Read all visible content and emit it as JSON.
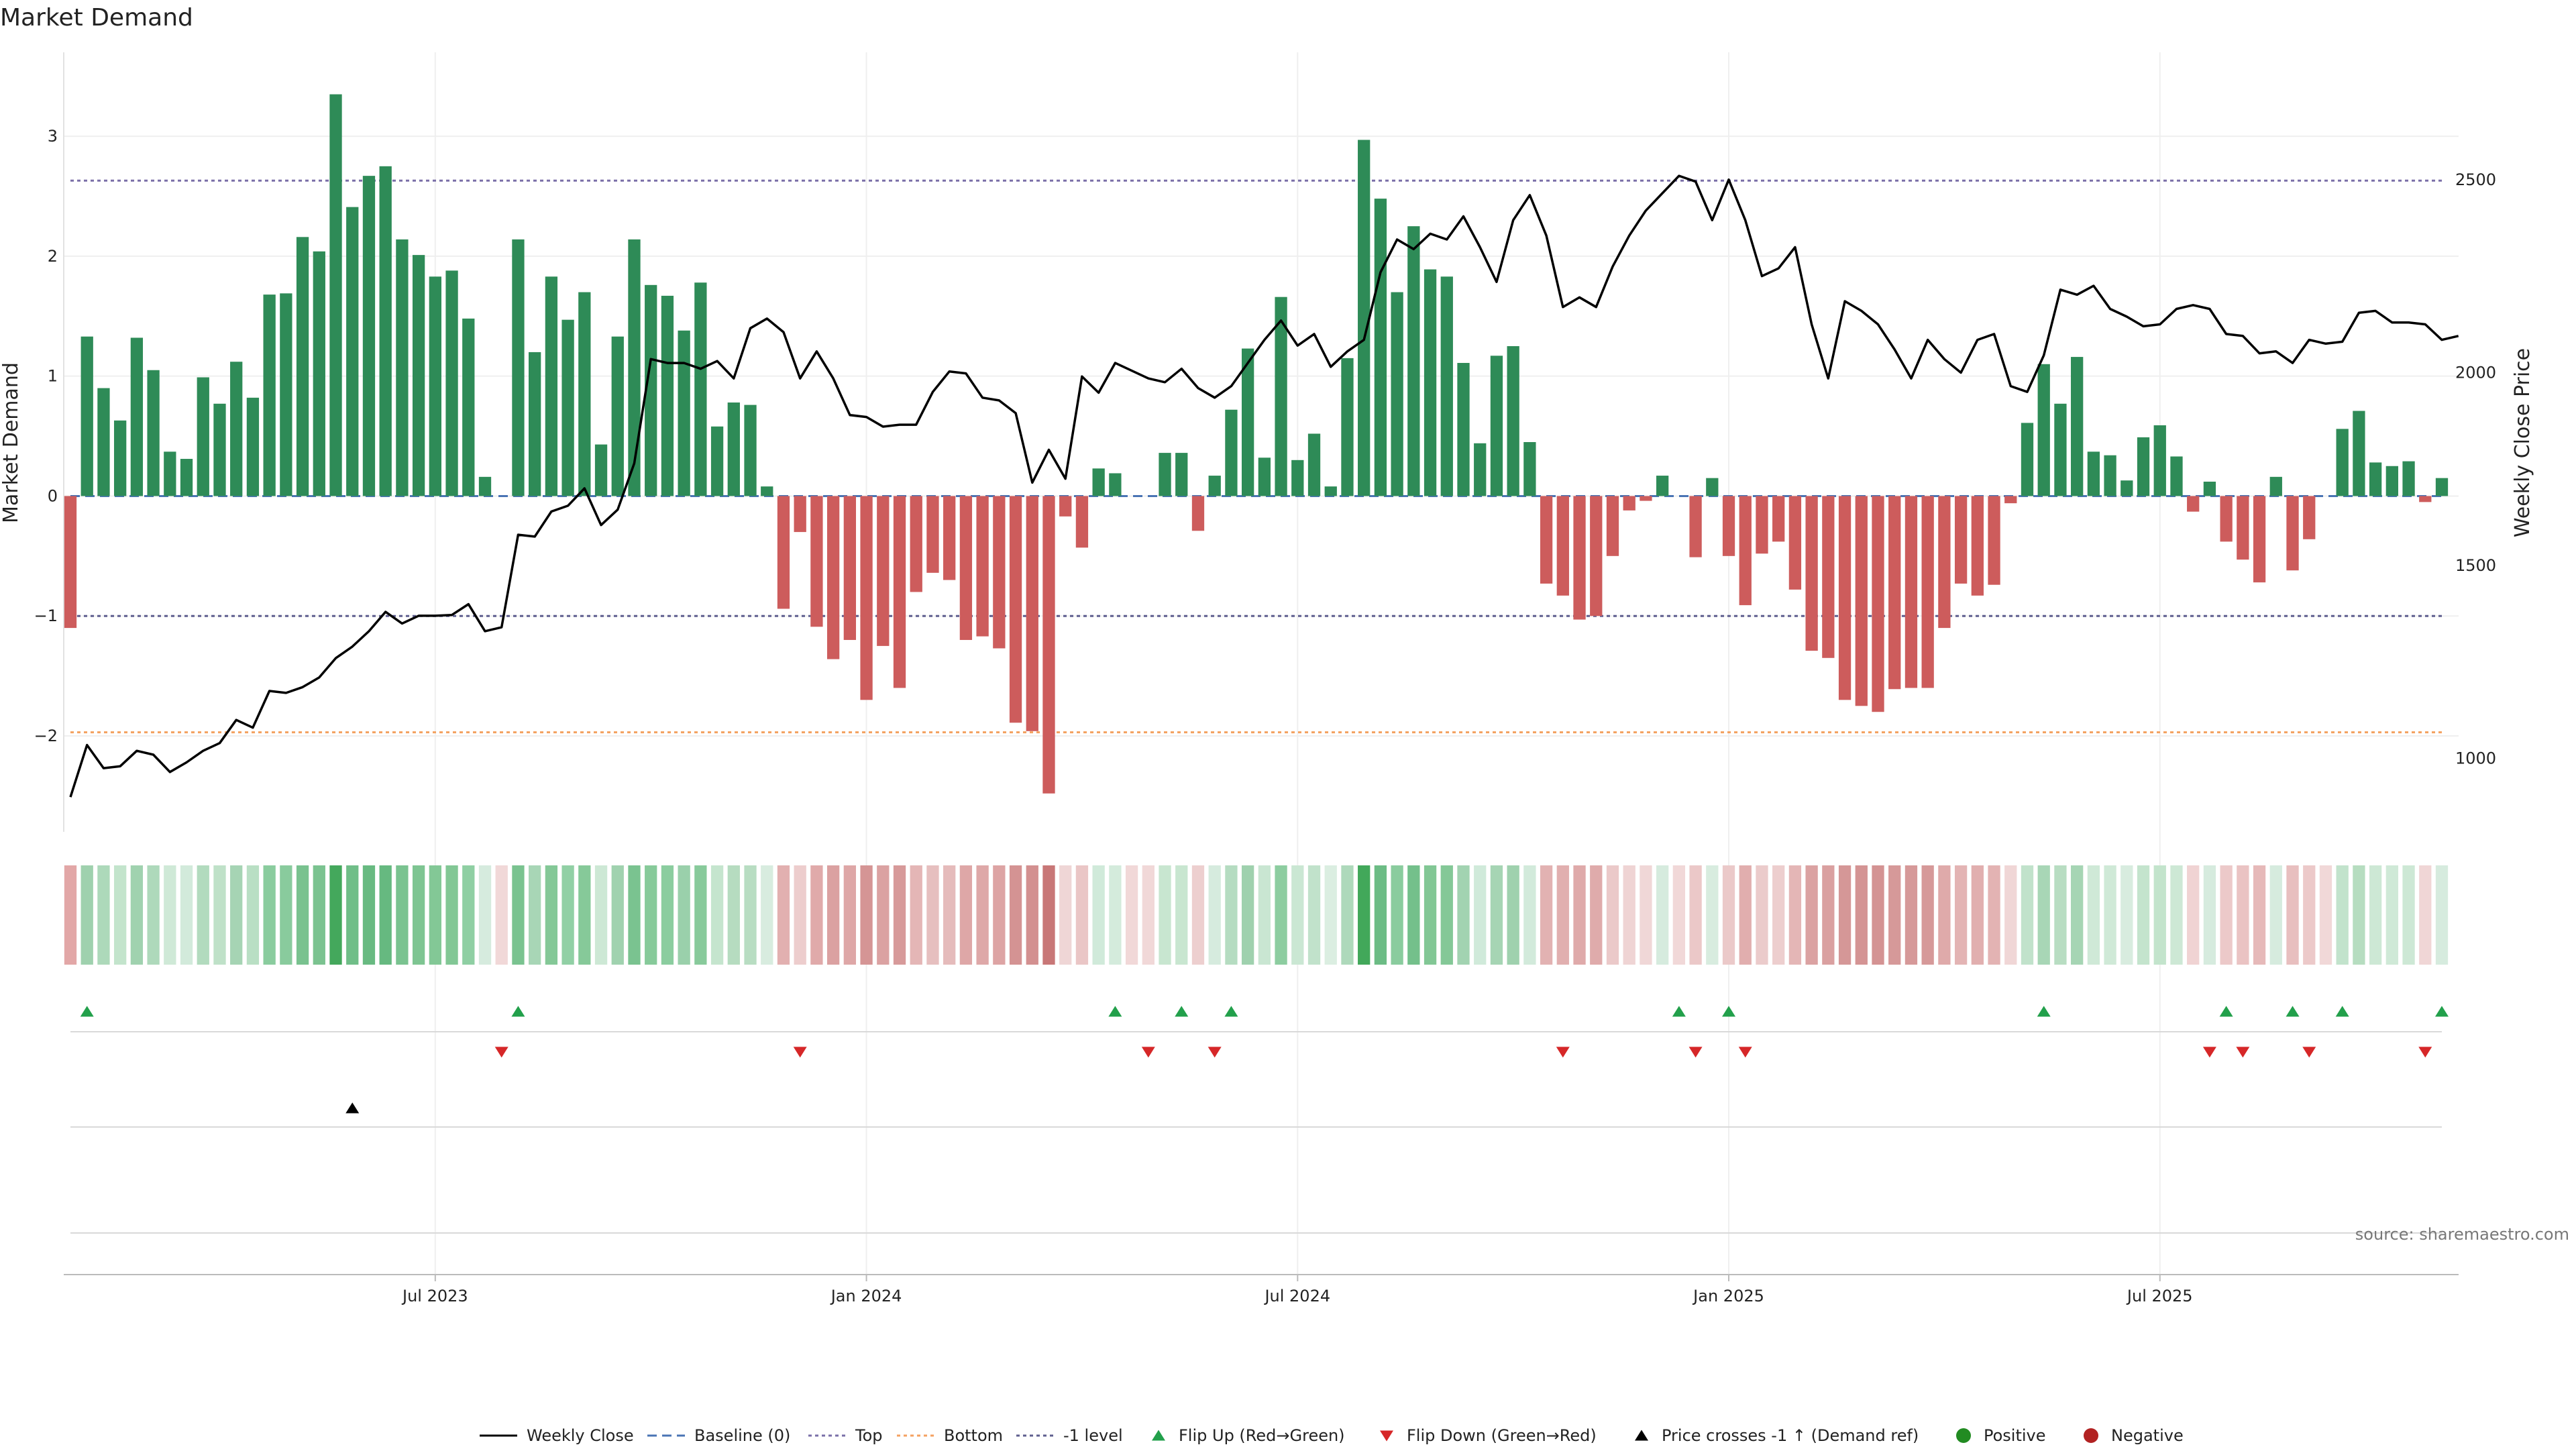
{
  "chart_data": {
    "type": "bar",
    "title": "Market Demand",
    "ylabel_left": "Market Demand",
    "ylabel_right": "Weekly Close Price",
    "source": "source: sharemaestro.com",
    "left_ticks": [
      {
        "value": 3,
        "label": "3"
      },
      {
        "value": 2,
        "label": "2"
      },
      {
        "value": 1,
        "label": "1"
      },
      {
        "value": 0,
        "label": "0"
      },
      {
        "value": -1,
        "label": "−1"
      },
      {
        "value": -2,
        "label": "−2"
      }
    ],
    "right_ticks": [
      {
        "value": 2500,
        "label": "2500"
      },
      {
        "value": 2000,
        "label": "2000"
      },
      {
        "value": 1500,
        "label": "1500"
      },
      {
        "value": 1000,
        "label": "1000"
      }
    ],
    "left_ylim": [
      -2.8,
      3.7
    ],
    "right_ylim": [
      810,
      2830
    ],
    "reference_lines": {
      "top": 2.63,
      "bottom": -1.97,
      "minus_one": -1.0
    },
    "x_ticks": [
      {
        "index": 22,
        "label": "Jul 2023"
      },
      {
        "index": 48,
        "label": "Jan 2024"
      },
      {
        "index": 74,
        "label": "Jul 2024"
      },
      {
        "index": 100,
        "label": "Jan 2025"
      },
      {
        "index": 126,
        "label": "Jul 2025"
      }
    ],
    "demand": [
      -1.1,
      1.33,
      0.9,
      0.63,
      1.32,
      1.05,
      0.37,
      0.31,
      0.99,
      0.77,
      1.12,
      0.82,
      1.68,
      1.69,
      2.16,
      2.04,
      3.35,
      2.41,
      2.67,
      2.75,
      2.14,
      2.01,
      1.83,
      1.88,
      1.48,
      0.16,
      0.0,
      2.14,
      1.2,
      1.83,
      1.47,
      1.7,
      0.43,
      1.33,
      2.14,
      1.76,
      1.67,
      1.38,
      1.78,
      0.58,
      0.78,
      0.76,
      0.08,
      -0.94,
      -0.3,
      -1.09,
      -1.36,
      -1.2,
      -1.7,
      -1.25,
      -1.6,
      -0.8,
      -0.64,
      -0.7,
      -1.2,
      -1.17,
      -1.27,
      -1.89,
      -1.96,
      -2.48,
      -0.17,
      -0.43,
      0.23,
      0.19,
      0.0,
      0.0,
      0.36,
      0.36,
      -0.29,
      0.17,
      0.72,
      1.23,
      0.32,
      1.66,
      0.3,
      0.52,
      0.08,
      1.15,
      2.97,
      2.48,
      1.7,
      2.25,
      1.89,
      1.83,
      1.11,
      0.44,
      1.17,
      1.25,
      0.45,
      -0.73,
      -0.83,
      -1.03,
      -1.0,
      -0.5,
      -0.12,
      -0.04,
      0.17,
      0.0,
      -0.51,
      0.15,
      -0.5,
      -0.91,
      -0.48,
      -0.38,
      -0.78,
      -1.29,
      -1.35,
      -1.7,
      -1.75,
      -1.8,
      -1.61,
      -1.6,
      -1.6,
      -1.1,
      -0.73,
      -0.83,
      -0.74,
      -0.06,
      0.61,
      1.1,
      0.77,
      1.16,
      0.37,
      0.34,
      0.13,
      0.49,
      0.59,
      0.33,
      -0.13,
      0.12,
      -0.38,
      -0.53,
      -0.72,
      0.16,
      -0.62,
      -0.36,
      0.0,
      0.56,
      0.71,
      0.28,
      0.25,
      0.29,
      -0.05,
      0.15
    ],
    "weekly_close": [
      900,
      1035,
      975,
      980,
      1020,
      1010,
      965,
      990,
      1020,
      1040,
      1100,
      1080,
      1175,
      1170,
      1185,
      1210,
      1260,
      1290,
      1330,
      1380,
      1350,
      1370,
      1370,
      1372,
      1400,
      1330,
      1340,
      1580,
      1575,
      1640,
      1655,
      1700,
      1605,
      1645,
      1765,
      2035,
      2025,
      2025,
      2010,
      2030,
      1985,
      2115,
      2140,
      2105,
      1985,
      2055,
      1985,
      1890,
      1885,
      1860,
      1865,
      1865,
      1950,
      2003,
      1998,
      1935,
      1928,
      1895,
      1715,
      1800,
      1725,
      1990,
      1948,
      2025,
      2005,
      1985,
      1975,
      2010,
      1960,
      1935,
      1965,
      2025,
      2085,
      2135,
      2070,
      2100,
      2015,
      2055,
      2085,
      2260,
      2345,
      2320,
      2360,
      2345,
      2405,
      2325,
      2235,
      2395,
      2460,
      2355,
      2170,
      2195,
      2170,
      2275,
      2355,
      2420,
      2465,
      2510,
      2495,
      2395,
      2500,
      2395,
      2250,
      2270,
      2325,
      2125,
      1985,
      2185,
      2160,
      2125,
      2060,
      1985,
      2085,
      2035,
      2000,
      2085,
      2100,
      1965,
      1950,
      2045,
      2215,
      2202,
      2225,
      2165,
      2145,
      2120,
      2125,
      2165,
      2175,
      2165,
      2100,
      2095,
      2050,
      2055,
      2025,
      2085,
      2075,
      2080,
      2155,
      2160,
      2130,
      2130,
      2125,
      2085,
      2095
    ],
    "heat_colors": [
      "#e2a7a7",
      "#9fd1ae",
      "#add9ba",
      "#c3e4cc",
      "#a0d2af",
      "#aed9bb",
      "#cfe9d7",
      "#d2eadb",
      "#b2dbbe",
      "#bfe1c8",
      "#a6d4b4",
      "#b9dfc4",
      "#8acc9e",
      "#89cb9d",
      "#79c28f",
      "#7bc390",
      "#44a85c",
      "#70be88",
      "#68ba81",
      "#66b980",
      "#7ac390",
      "#7ec592",
      "#83c896",
      "#82c795",
      "#8fcfa3",
      "#d6ebde",
      "#f1d8d8",
      "#7ac390",
      "#a8d6b6",
      "#84c897",
      "#91d0a5",
      "#86c999",
      "#cde8d5",
      "#a0d2af",
      "#7ac390",
      "#87ca9a",
      "#8bcd9f",
      "#9ad0ab",
      "#88ca9b",
      "#c5e5ce",
      "#b6dcc0",
      "#b8ddc2",
      "#d8ecdf",
      "#e2b0b0",
      "#edcdcd",
      "#e0aaaa",
      "#dba1a1",
      "#dea7a7",
      "#d59595",
      "#dba2a2",
      "#d79a9a",
      "#e4b6b6",
      "#e6bfbf",
      "#e5bbbb",
      "#dea7a7",
      "#dea8a8",
      "#dda4a4",
      "#d49393",
      "#d39090",
      "#c87777",
      "#efd6d6",
      "#eac6c6",
      "#d0eada",
      "#d4ebdc",
      "#f1d8d8",
      "#f1d8d8",
      "#c8e6d0",
      "#c8e6d0",
      "#edcfcf",
      "#d6ebde",
      "#b5dcc1",
      "#9fd1ae",
      "#c9e6d2",
      "#8dcda0",
      "#cae7d3",
      "#c1e2cb",
      "#dbeee1",
      "#aed9bb",
      "#42a85a",
      "#6cbc85",
      "#8acc9e",
      "#74c08b",
      "#82c795",
      "#84c897",
      "#a2d3b1",
      "#d0eada",
      "#a6d5b4",
      "#9fd1ae",
      "#d2eadb",
      "#e2b2b2",
      "#e1afaf",
      "#dfaaaa",
      "#dfabab",
      "#ebc9c9",
      "#efd4d4",
      "#f0d7d7",
      "#d6ebde",
      "#f1d8d8",
      "#ebc8c8",
      "#d8ecdf",
      "#ebc9c9",
      "#e1aeae",
      "#ebcbcb",
      "#edcece",
      "#e4b6b6",
      "#dba2a2",
      "#daa0a0",
      "#d59797",
      "#d49494",
      "#d49393",
      "#d69999",
      "#d69999",
      "#d69999",
      "#dfaaaa",
      "#e3b4b4",
      "#e1afaf",
      "#e3b3b3",
      "#f0d6d6",
      "#c1e2cb",
      "#a8d6b6",
      "#b8ddc2",
      "#a6d5b4",
      "#cfe9d7",
      "#cfe9d7",
      "#d8ecdf",
      "#c4e4cd",
      "#c3e4cc",
      "#cde8d5",
      "#f0d3d3",
      "#d6ebde",
      "#ecc9c9",
      "#eac3c3",
      "#e6b9b9",
      "#d6ebde",
      "#e8bfbf",
      "#ecc9c9",
      "#f1d8d8",
      "#c2e3cc",
      "#b6ddc0",
      "#cde8d5",
      "#cfe9d7",
      "#cde8d5",
      "#f0d6d6",
      "#d6ebde"
    ],
    "flip_up_indices": [
      1,
      27,
      63,
      67,
      70,
      97,
      100,
      119,
      130,
      134,
      137,
      143
    ],
    "flip_down_indices": [
      26,
      44,
      65,
      69,
      90,
      98,
      101,
      129,
      131,
      135,
      142
    ],
    "price_cross_indices": [
      17
    ],
    "legend": [
      {
        "key": "weekly_close",
        "label": "Weekly Close"
      },
      {
        "key": "baseline",
        "label": "Baseline (0)"
      },
      {
        "key": "top",
        "label": "Top"
      },
      {
        "key": "bottom",
        "label": "Bottom"
      },
      {
        "key": "minus_one",
        "label": "-1 level"
      },
      {
        "key": "flip_up",
        "label": "Flip Up (Red→Green)"
      },
      {
        "key": "flip_down",
        "label": "Flip Down (Green→Red)"
      },
      {
        "key": "price_cross",
        "label": "Price crosses -1 ↑ (Demand ref)"
      },
      {
        "key": "positive",
        "label": "Positive"
      },
      {
        "key": "negative",
        "label": "Negative"
      }
    ],
    "colors": {
      "positive": "#2e8b57",
      "negative": "#cd5c5c",
      "price": "#000000",
      "baseline": "#4a74b4",
      "top": "#7a6fa8",
      "bottom": "#f4a261",
      "minus_one": "#5f5f8f",
      "flip_up": "#22a04b",
      "flip_down": "#d62728",
      "price_cross": "#000000",
      "positive_dot": "#228b22",
      "negative_dot": "#b22222"
    }
  }
}
